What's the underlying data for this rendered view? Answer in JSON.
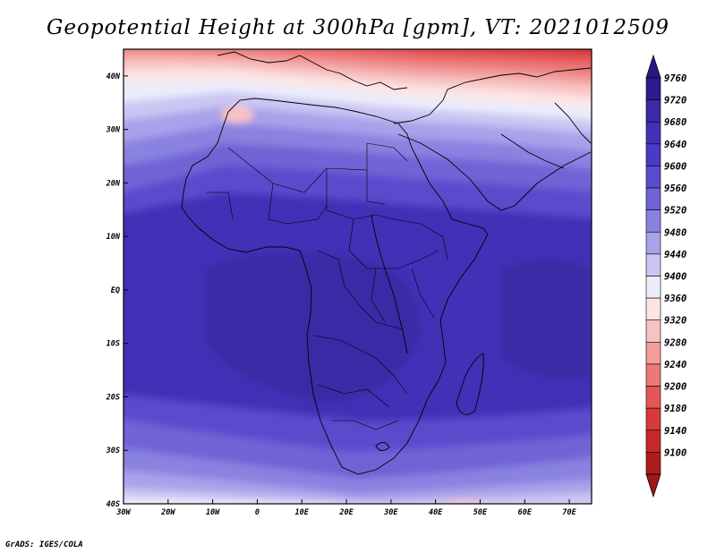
{
  "title": "Geopotential Height at 300hPa [gpm], VT: 2021012509",
  "footer": "GrADS: IGES/COLA",
  "map": {
    "lat_labels": [
      "40N",
      "30N",
      "20N",
      "10N",
      "EQ",
      "10S",
      "20S",
      "30S",
      "40S"
    ],
    "lon_labels": [
      "30W",
      "20W",
      "10W",
      "0",
      "10E",
      "20E",
      "30E",
      "40E",
      "50E",
      "60E",
      "70E"
    ],
    "lon_range": [
      -30,
      75
    ],
    "lat_range": [
      -40,
      45
    ]
  },
  "colorbar": {
    "levels": [
      "9760",
      "9720",
      "9680",
      "9640",
      "9600",
      "9560",
      "9520",
      "9480",
      "9440",
      "9400",
      "9360",
      "9320",
      "9280",
      "9240",
      "9200",
      "9180",
      "9140",
      "9100"
    ],
    "colors": [
      "#2d1c8c",
      "#3a2aa6",
      "#4131b6",
      "#4a3bc4",
      "#5a4ccd",
      "#6f63d6",
      "#8a82e0",
      "#a8a2ea",
      "#cac6f3",
      "#ececfb",
      "#fce4e4",
      "#f8c2c2",
      "#f29c9c",
      "#ec7878",
      "#e35656",
      "#d83a3a",
      "#c62828",
      "#ad1c1c"
    ],
    "over_color": "#261a86",
    "under_color": "#a11818"
  }
}
